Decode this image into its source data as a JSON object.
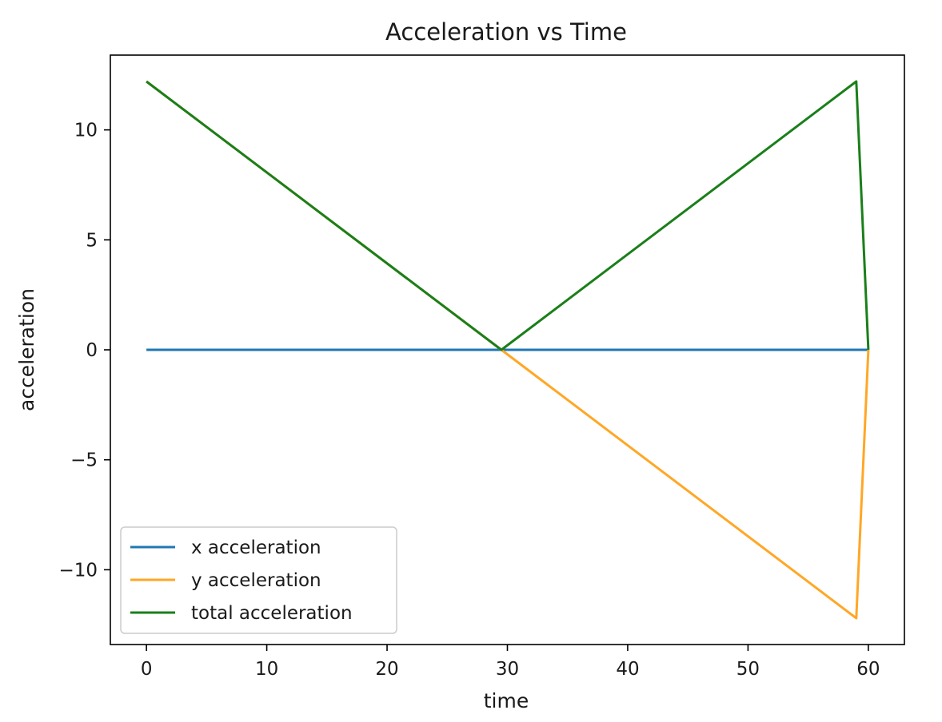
{
  "chart_data": {
    "type": "line",
    "title": "Acceleration vs Time",
    "xlabel": "time",
    "ylabel": "acceleration",
    "xlim": [
      -3,
      63
    ],
    "ylim": [
      -13.4,
      13.4
    ],
    "xticks": [
      0,
      10,
      20,
      30,
      40,
      50,
      60
    ],
    "xtick_labels": [
      "0",
      "10",
      "20",
      "30",
      "40",
      "50",
      "60"
    ],
    "yticks": [
      -10,
      -5,
      0,
      5,
      10
    ],
    "ytick_labels": [
      "−10",
      "−5",
      "0",
      "5",
      "10"
    ],
    "grid": false,
    "legend_position": "lower-left",
    "series": [
      {
        "name": "x acceleration",
        "color": "#1f77b4",
        "x": [
          0,
          29.5,
          59,
          60
        ],
        "y": [
          0,
          0,
          0,
          0
        ]
      },
      {
        "name": "y acceleration",
        "color": "#ffa726",
        "x": [
          0,
          29.5,
          59,
          60
        ],
        "y": [
          12.2,
          0,
          -12.2,
          0
        ]
      },
      {
        "name": "total acceleration",
        "color": "#1a7f1a",
        "x": [
          0,
          29.5,
          59,
          60
        ],
        "y": [
          12.2,
          0,
          12.2,
          0
        ]
      }
    ]
  }
}
